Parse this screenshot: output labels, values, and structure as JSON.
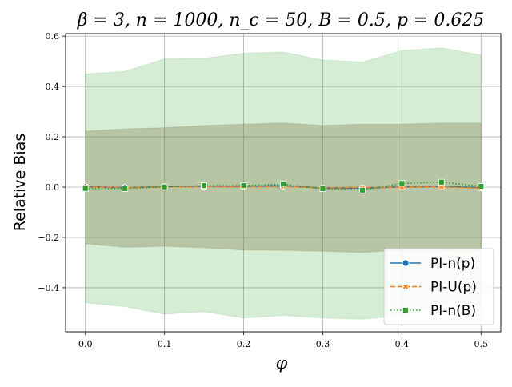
{
  "chart_data": {
    "type": "line",
    "title": "β = 3, n = 1000, n_c = 50, B = 0.5, p = 0.625",
    "xlabel": "φ",
    "ylabel": "Relative Bias",
    "xlim": [
      -0.025,
      0.525
    ],
    "ylim": [
      -0.575,
      0.61
    ],
    "grid": true,
    "legend_position": "lower-right",
    "x": [
      0.0,
      0.05,
      0.1,
      0.15,
      0.2,
      0.25,
      0.3,
      0.35,
      0.4,
      0.45,
      0.5
    ],
    "x_ticks": [
      0.0,
      0.1,
      0.2,
      0.3,
      0.4,
      0.5
    ],
    "x_tick_labels": [
      "0.0",
      "0.1",
      "0.2",
      "0.3",
      "0.4",
      "0.5"
    ],
    "y_ticks": [
      -0.4,
      -0.2,
      0.0,
      0.2,
      0.4,
      0.6
    ],
    "y_tick_labels": [
      "−0.4",
      "−0.2",
      "0.0",
      "0.2",
      "0.4",
      "0.6"
    ],
    "series": [
      {
        "name": "PI-n(p)",
        "color": "#1f77b4",
        "line_style": "solid",
        "marker": "circle",
        "values": [
          0.002,
          -0.002,
          0.002,
          0.004,
          0.003,
          0.006,
          -0.004,
          -0.004,
          0.001,
          0.003,
          -0.002
        ],
        "band_lower": [
          -0.225,
          -0.24,
          -0.235,
          -0.24,
          -0.25,
          -0.25,
          -0.255,
          -0.26,
          -0.25,
          -0.25,
          -0.25
        ],
        "band_upper": [
          0.222,
          0.232,
          0.236,
          0.245,
          0.25,
          0.255,
          0.245,
          0.25,
          0.25,
          0.255,
          0.255
        ]
      },
      {
        "name": "PI-U(p)",
        "color": "#ff7f0e",
        "line_style": "dashed",
        "marker": "x",
        "values": [
          0.001,
          -0.002,
          0.001,
          0.002,
          0.001,
          0.003,
          -0.003,
          -0.002,
          0.0,
          0.001,
          -0.004
        ],
        "band_lower": [
          -0.225,
          -0.238,
          -0.235,
          -0.242,
          -0.25,
          -0.252,
          -0.255,
          -0.258,
          -0.25,
          -0.25,
          -0.252
        ],
        "band_upper": [
          0.222,
          0.23,
          0.236,
          0.244,
          0.25,
          0.254,
          0.245,
          0.25,
          0.25,
          0.253,
          0.253
        ]
      },
      {
        "name": "PI-n(B)",
        "color": "#2ca02c",
        "line_style": "dotted",
        "marker": "square",
        "values": [
          -0.005,
          -0.006,
          0.001,
          0.006,
          0.006,
          0.012,
          -0.006,
          -0.012,
          0.015,
          0.02,
          0.003
        ],
        "band_lower": [
          -0.46,
          -0.475,
          -0.505,
          -0.495,
          -0.52,
          -0.51,
          -0.52,
          -0.525,
          -0.51,
          -0.47,
          -0.465
        ],
        "band_upper": [
          0.45,
          0.46,
          0.51,
          0.512,
          0.532,
          0.537,
          0.505,
          0.497,
          0.543,
          0.553,
          0.525
        ]
      }
    ]
  }
}
